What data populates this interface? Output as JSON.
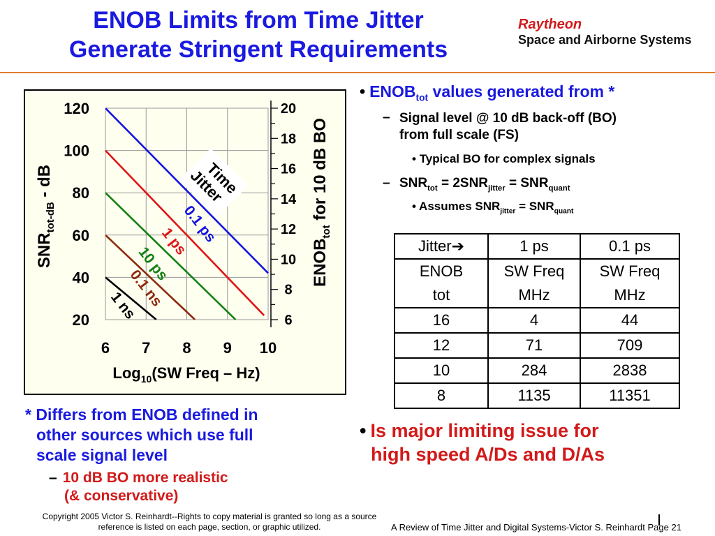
{
  "slide": {
    "title_line1": "ENOB Limits from Time Jitter",
    "title_line2": "Generate Stringent Requirements",
    "logo_brand": "Raytheon",
    "logo_sub": "Space and Airborne Systems"
  },
  "chart_data": {
    "type": "line",
    "x_ticks": [
      "6",
      "7",
      "8",
      "9",
      "10"
    ],
    "y_ticks": [
      "120",
      "100",
      "80",
      "60",
      "40",
      "20"
    ],
    "y2_ticks": [
      "20",
      "18",
      "16",
      "14",
      "12",
      "10",
      "8",
      "6"
    ],
    "xlim": [
      6,
      10
    ],
    "ylim": [
      20,
      120
    ],
    "y2lim": [
      6,
      20
    ],
    "xlabel_pre": "Log",
    "xlabel_sub": "10",
    "xlabel_post": "(SW Freq – Hz)",
    "ylabel_pre": "SNR",
    "ylabel_sub": "tot-dB",
    "ylabel_post": " - dB",
    "y2label_pre": "ENOB",
    "y2label_sub": "tot",
    "y2label_post": " for 10 dB BO",
    "annotation": "Time Jitter",
    "annotation_line1": "Time",
    "annotation_line2": "Jitter",
    "series": [
      {
        "name": "0.1 ps",
        "color": "#1414e0",
        "x": [
          6,
          10
        ],
        "y": [
          120,
          42
        ]
      },
      {
        "name": "1 ps",
        "color": "#e01414",
        "x": [
          6,
          9.9
        ],
        "y": [
          100,
          22
        ]
      },
      {
        "name": "10 ps",
        "color": "#128012",
        "x": [
          6,
          9.2
        ],
        "y": [
          80,
          20
        ]
      },
      {
        "name": "0.1 ns",
        "color": "#8b2a0e",
        "x": [
          6,
          8.2
        ],
        "y": [
          60,
          20
        ]
      },
      {
        "name": "1 ns",
        "color": "#000000",
        "x": [
          6,
          7.25
        ],
        "y": [
          40,
          20
        ]
      }
    ]
  },
  "bullets": {
    "b1_pre": "ENOB",
    "b1_sub": "tot",
    "b1_post": " values generated from *",
    "d1_line1": "Signal level @ 10 dB back-off (BO)",
    "d1_line2": "from full scale (FS)",
    "d1_sub": "Typical BO for complex signals",
    "d2_a": "SNR",
    "d2_a_sub": "tot",
    "d2_b": " = 2SNR",
    "d2_b_sub": "jitter",
    "d2_c": " = SNR",
    "d2_c_sub": "quant",
    "d2_sub_a": "Assumes SNR",
    "d2_sub_a_sub": "jitter",
    "d2_sub_b": " = SNR",
    "d2_sub_b_sub": "quant",
    "dash": "–",
    "bullet_char": "•"
  },
  "table": {
    "header": [
      "Jitter",
      "1 ps",
      "0.1 ps"
    ],
    "header_arrow": "➔",
    "subheader": [
      [
        "ENOB",
        "tot"
      ],
      [
        "SW Freq",
        "MHz"
      ],
      [
        "SW Freq",
        "MHz"
      ]
    ],
    "rows": [
      [
        "16",
        "4",
        "44"
      ],
      [
        "12",
        "71",
        "709"
      ],
      [
        "10",
        "284",
        "2838"
      ],
      [
        "8",
        "1135",
        "11351"
      ]
    ]
  },
  "major": {
    "line1": "Is major limiting issue for",
    "line2": "high speed A/Ds and D/As"
  },
  "note": {
    "line1": "* Differs from ENOB defined in",
    "line2": "other sources which use full",
    "line3": "scale signal level",
    "sub_line1": "10 dB BO more realistic",
    "sub_line2": "(& conservative)"
  },
  "copyright": {
    "line1": "Copyright 2005 Victor S. Reinhardt--Rights to copy material is granted so long as a source",
    "line2": "reference is listed on each page, section, or graphic utilized."
  },
  "footer": "A Review of Time Jitter and Digital Systems-Victor S. Reinhardt  Page 21"
}
